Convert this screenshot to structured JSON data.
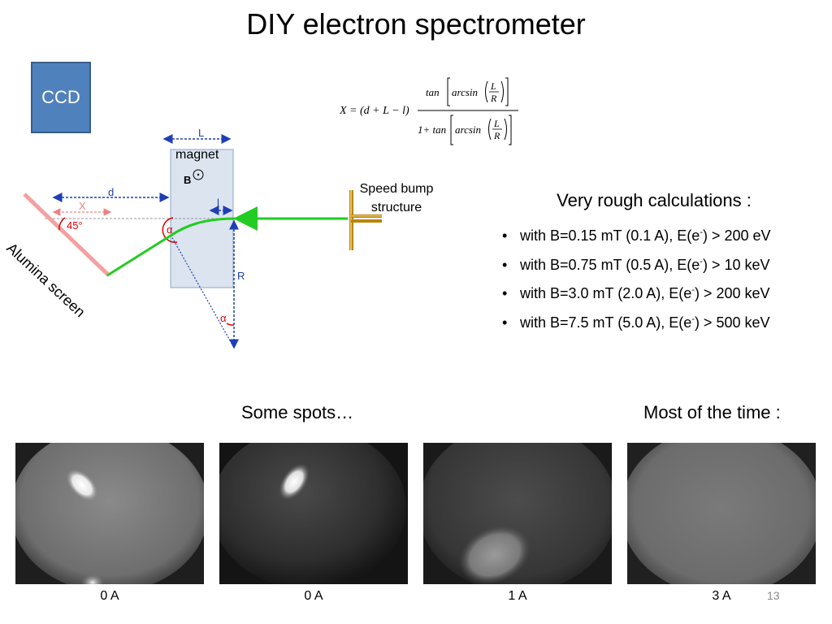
{
  "slide": {
    "title": "DIY electron spectrometer",
    "page_number": "13"
  },
  "diagram": {
    "ccd_label": "CCD",
    "magnet_label": "magnet",
    "b_field_label": "B",
    "length_label_L": "L",
    "length_label_l": "l",
    "distance_label_d": "d",
    "distance_label_X": "X",
    "angle_45_label": "45°",
    "angle_alpha_label": "α",
    "radius_label": "R",
    "screen_label": "Alumina screen",
    "source_label_line1": "Speed bump",
    "source_label_line2": "structure"
  },
  "formula": {
    "lhs": "X = (d + L − l)",
    "tan": "tan",
    "arcsin": "arcsin",
    "L": "L",
    "R": "R",
    "denominator_prefix": "1+ tan"
  },
  "calculations": {
    "title": "Very rough calculations :",
    "items": [
      {
        "prefix": "with B=0.15 mT (0.1 A), E(e",
        "sup": "-",
        "suffix": ") > 200 eV"
      },
      {
        "prefix": "with B=0.75 mT (0.5 A), E(e",
        "sup": "-",
        "suffix": ") > 10 keV"
      },
      {
        "prefix": "with B=3.0 mT (2.0 A), E(e",
        "sup": "-",
        "suffix": ") > 200 keV"
      },
      {
        "prefix": "with B=7.5 mT (5.0 A), E(e",
        "sup": "-",
        "suffix": ") > 500 keV"
      }
    ]
  },
  "images": {
    "heading_left": "Some spots…",
    "heading_right": "Most of the time :",
    "captions": [
      "0 A",
      "0 A",
      "1 A",
      "3 A"
    ]
  },
  "colors": {
    "ccd_fill": "#4f81bd",
    "beam": "#22cc22",
    "dimension_blue": "#1f3fb4",
    "angle_red": "#e00000",
    "screen_pink": "#f4a0a0",
    "magnet_fill": "#dce4f0"
  }
}
